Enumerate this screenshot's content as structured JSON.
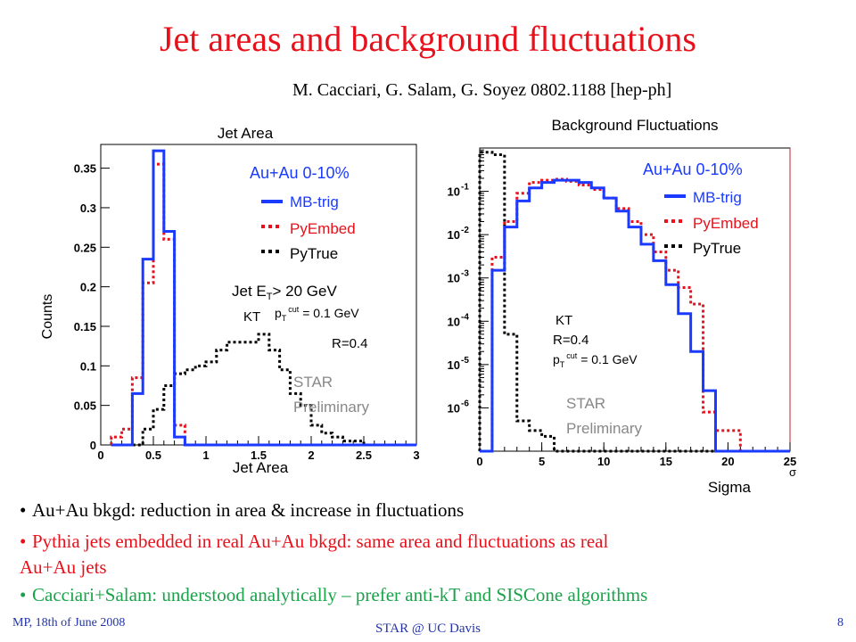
{
  "slide": {
    "title": "Jet areas and background fluctuations",
    "reference": "M. Cacciari, G. Salam, G. Soyez  0802.1188 [hep-ph]",
    "bullets": [
      {
        "text": "Au+Au bkgd: reduction in area & increase in fluctuations",
        "color": "#000000"
      },
      {
        "text": "Pythia jets embedded in real Au+Au bkgd: same area and fluctuations as real",
        "text2": "Au+Au jets",
        "color": "#e8101a"
      },
      {
        "text": "Cacciari+Salam: understood analytically – prefer anti-kT and SISCone algorithms",
        "color": "#1aa34a"
      }
    ],
    "footer_left": "MP, 18th of June 2008",
    "footer_center": "STAR @ UC Davis",
    "footer_right": "8"
  },
  "chart_data": [
    {
      "type": "line",
      "title": "Jet Area",
      "xlabel": "Jet Area",
      "ylabel": "Counts",
      "xlim": [
        0,
        3
      ],
      "ylim": [
        0,
        0.38
      ],
      "x_ticks": [
        "0",
        "0.5",
        "1",
        "1.5",
        "2",
        "2.5",
        "3"
      ],
      "y_ticks": [
        "0",
        "0.05",
        "0.1",
        "0.15",
        "0.2",
        "0.25",
        "0.3",
        "0.35"
      ],
      "annotations": {
        "system": "Au+Au 0-10%",
        "cut": "Jet E",
        "cut_sub": "T",
        "cut_tail": "> 20 GeV",
        "algo": "KT",
        "pt_pre": "p",
        "pt_sub": "T",
        "pt_sup": "cut",
        "pt_tail": " = 0.1 GeV",
        "radius": "R=0.4",
        "prelim1": "STAR",
        "prelim2": "Preliminary"
      },
      "legend": [
        {
          "name": "MB-trig",
          "color": "#1a3aff",
          "style": "solid"
        },
        {
          "name": "PyEmbed",
          "color": "#e8101a",
          "style": "dotted"
        },
        {
          "name": "PyTrue",
          "color": "#000000",
          "style": "dotted"
        }
      ],
      "bin_width": 0.1,
      "bin_start": 0.1,
      "series": [
        {
          "name": "MB-trig",
          "values": [
            0.0,
            0.0,
            0.065,
            0.235,
            0.372,
            0.27,
            0.01,
            0.0,
            0.0,
            0.0,
            0.0,
            0.0,
            0.0,
            0.0,
            0.0,
            0.0,
            0.0,
            0.0,
            0.0,
            0.0,
            0.0,
            0.0,
            0.0,
            0.0,
            0.0,
            0.0,
            0.0,
            0.0,
            0.0
          ]
        },
        {
          "name": "PyEmbed",
          "values": [
            0.01,
            0.02,
            0.085,
            0.205,
            0.355,
            0.26,
            0.025,
            0.0,
            0.0,
            0.0,
            0.0,
            0.0,
            0.0,
            0.0,
            0.0,
            0.0,
            0.0,
            0.0,
            0.0,
            0.0,
            0.0,
            0.0,
            0.0,
            0.0,
            0.0,
            0.0,
            0.0,
            0.0,
            0.0
          ]
        },
        {
          "name": "PyTrue",
          "values": [
            0.0,
            0.0,
            0.0,
            0.02,
            0.045,
            0.075,
            0.09,
            0.095,
            0.1,
            0.105,
            0.12,
            0.13,
            0.13,
            0.13,
            0.14,
            0.12,
            0.095,
            0.065,
            0.05,
            0.025,
            0.015,
            0.01,
            0.005,
            0.005,
            0.0,
            0.0,
            0.0,
            0.0,
            0.0
          ]
        }
      ]
    },
    {
      "type": "line",
      "title": "Background Fluctuations",
      "xlabel": "Sigma",
      "x_unit": "σ",
      "xlim": [
        0,
        25
      ],
      "ylim": [
        1e-07,
        1
      ],
      "yscale": "log",
      "x_ticks": [
        "0",
        "5",
        "10",
        "15",
        "20",
        "25"
      ],
      "y_ticks": [
        {
          "base": "10",
          "exp": "-1",
          "value": 0.1
        },
        {
          "base": "10",
          "exp": "-2",
          "value": 0.01
        },
        {
          "base": "10",
          "exp": "-3",
          "value": 0.001
        },
        {
          "base": "10",
          "exp": "-4",
          "value": 0.0001
        },
        {
          "base": "10",
          "exp": "-5",
          "value": 1e-05
        },
        {
          "base": "10",
          "exp": "-6",
          "value": 1e-06
        }
      ],
      "annotations": {
        "system": "Au+Au 0-10%",
        "algo": "KT",
        "radius": "R=0.4",
        "pt_pre": "p",
        "pt_sub": "T",
        "pt_sup": "cut",
        "pt_tail": " = 0.1 GeV",
        "prelim1": "STAR",
        "prelim2": "Preliminary"
      },
      "legend": [
        {
          "name": "MB-trig",
          "color": "#1a3aff",
          "style": "solid"
        },
        {
          "name": "PyEmbed",
          "color": "#e8101a",
          "style": "dotted"
        },
        {
          "name": "PyTrue",
          "color": "#000000",
          "style": "dotted"
        }
      ],
      "bin_width": 1,
      "series": [
        {
          "name": "MB-trig",
          "values": [
            0,
            0.0015,
            0.015,
            0.06,
            0.12,
            0.16,
            0.18,
            0.18,
            0.16,
            0.12,
            0.07,
            0.035,
            0.015,
            0.006,
            0.0025,
            0.0007,
            0.00015,
            2e-05,
            2.5e-06,
            0,
            0,
            0,
            0,
            0,
            0
          ]
        },
        {
          "name": "PyEmbed",
          "values": [
            0,
            0.003,
            0.02,
            0.09,
            0.16,
            0.18,
            0.19,
            0.17,
            0.14,
            0.11,
            0.07,
            0.04,
            0.02,
            0.01,
            0.004,
            0.0015,
            0.0006,
            0.00025,
            8e-07,
            3e-07,
            3e-07,
            0,
            0,
            0,
            0
          ]
        },
        {
          "name": "PyTrue",
          "values": [
            0.8,
            0.7,
            5e-05,
            5e-07,
            3e-07,
            2.2e-07,
            0,
            0,
            0,
            0,
            0,
            0,
            0,
            0,
            0,
            0,
            0,
            0,
            0,
            0,
            0,
            0,
            0,
            0,
            0
          ]
        }
      ]
    }
  ]
}
